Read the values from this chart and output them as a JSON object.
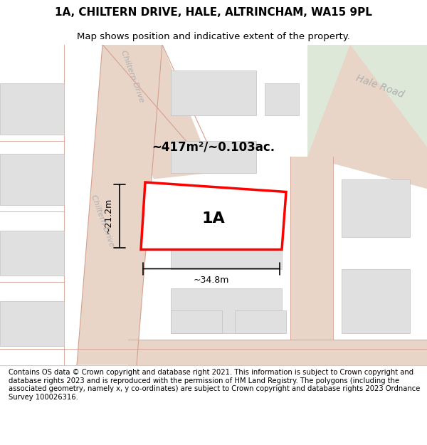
{
  "title": "1A, CHILTERN DRIVE, HALE, ALTRINCHAM, WA15 9PL",
  "subtitle": "Map shows position and indicative extent of the property.",
  "footer": "Contains OS data © Crown copyright and database right 2021. This information is subject to Crown copyright and database rights 2023 and is reproduced with the permission of HM Land Registry. The polygons (including the associated geometry, namely x, y co-ordinates) are subject to Crown copyright and database rights 2023 Ordnance Survey 100026316.",
  "bg_color": "#ffffff",
  "map_bg": "#f5f5f5",
  "road_color": "#e8d5c8",
  "road_line_color": "#d4a090",
  "plot_outline_color": "#ff0000",
  "building_fill": "#e0e0e0",
  "green_area_color": "#dde8d8",
  "road_label_color": "#b0b0b0",
  "area_text": "~417m²/~0.103ac.",
  "label_1a": "1A",
  "dim_width": "~34.8m",
  "dim_height": "~21.2m",
  "chiltern_drive_label": "Chiltern Drive",
  "hale_road_label": "Hale Road"
}
